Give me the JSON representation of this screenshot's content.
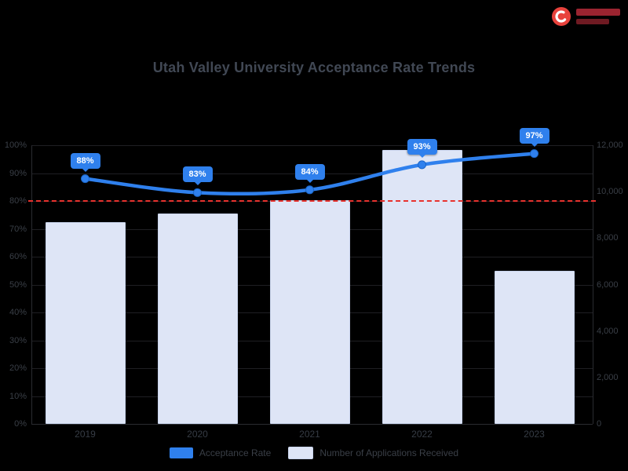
{
  "page": {
    "background": "#000000",
    "text_color": "#3a3f47"
  },
  "brand": {
    "accent": "#e8423c"
  },
  "chart_data": {
    "type": "combo",
    "title": "Utah Valley University Acceptance Rate Trends",
    "categories": [
      "2019",
      "2020",
      "2021",
      "2022",
      "2023"
    ],
    "series": [
      {
        "name": "Acceptance Rate",
        "type": "line",
        "color": "#2f80ed",
        "values_percent": [
          88,
          83,
          84,
          93,
          97
        ],
        "labels": [
          "88%",
          "83%",
          "84%",
          "93%",
          "97%"
        ]
      },
      {
        "name": "Number of Applications Received",
        "type": "bar",
        "color": "#dee5f6",
        "border_color": "#c9d4ec",
        "values": [
          8700,
          9050,
          9650,
          11800,
          6600
        ]
      }
    ],
    "left_axis": {
      "min": 0,
      "max": 100,
      "unit": "%",
      "ticks": [
        "100%",
        "90%",
        "80%",
        "70%",
        "60%",
        "50%",
        "40%",
        "30%",
        "20%",
        "10%",
        "0%"
      ]
    },
    "right_axis": {
      "min": 0,
      "max": 12000,
      "ticks": [
        "12,000",
        "10,000",
        "8,000",
        "6,000",
        "4,000",
        "2,000",
        "0"
      ]
    },
    "reference_line": {
      "value_percent": 80,
      "color": "#e8322e",
      "style": "dashed"
    },
    "legend": [
      {
        "label": "Acceptance Rate",
        "color": "#2f80ed"
      },
      {
        "label": "Number of Applications Received",
        "color": "#dee5f6"
      }
    ],
    "legend_position": "bottom",
    "grid": "subtle-horizontal"
  }
}
